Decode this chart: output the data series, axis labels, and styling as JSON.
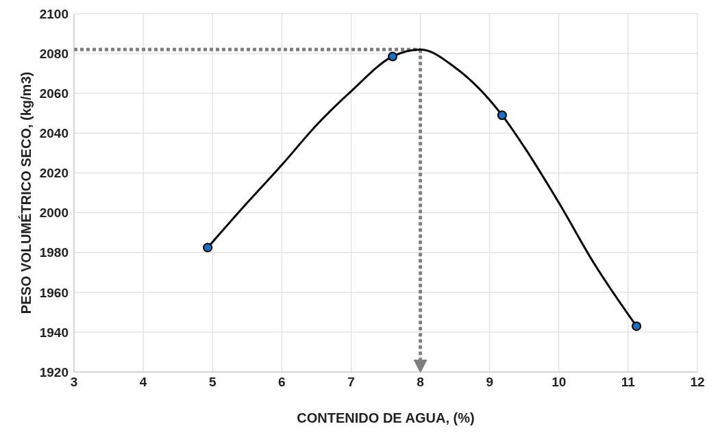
{
  "chart_data": {
    "type": "scatter",
    "xlabel": "CONTENIDO DE AGUA, (%)",
    "ylabel": "PESO VOLUMÉTRICO SECO, (kg/m3)",
    "series": [
      {
        "type": "line",
        "color": "#000000",
        "marker": "none",
        "x": [
          4.93,
          5.5,
          6,
          6.5,
          7,
          7.6,
          8,
          8.5,
          9.18,
          9.5,
          10,
          10.5,
          11.12
        ],
        "values": [
          1982.5,
          2005,
          2024,
          2044,
          2061,
          2078.5,
          2082,
          2073,
          2049,
          2033,
          2005,
          1975,
          1943
        ]
      },
      {
        "color": "#1f6fc0",
        "marker": "circle",
        "x": [
          4.93,
          7.6,
          9.18,
          11.12
        ],
        "values": [
          1982.5,
          2078.5,
          2049,
          1943
        ]
      }
    ],
    "xlim": [
      3,
      12
    ],
    "xticks": [
      3,
      4,
      5,
      6,
      7,
      8,
      9,
      10,
      11,
      12
    ],
    "ylim": [
      1920,
      2100
    ],
    "yticks": [
      1920,
      1940,
      1960,
      1980,
      2000,
      2020,
      2040,
      2060,
      2080,
      2100
    ],
    "grid": true,
    "ref_lines": [
      {
        "axis": "y",
        "value": 2082,
        "color": "#7f7f7f",
        "line_style": "dotted"
      },
      {
        "axis": "x",
        "value": 8,
        "color": "#7f7f7f",
        "line_style": "dotted"
      }
    ]
  }
}
